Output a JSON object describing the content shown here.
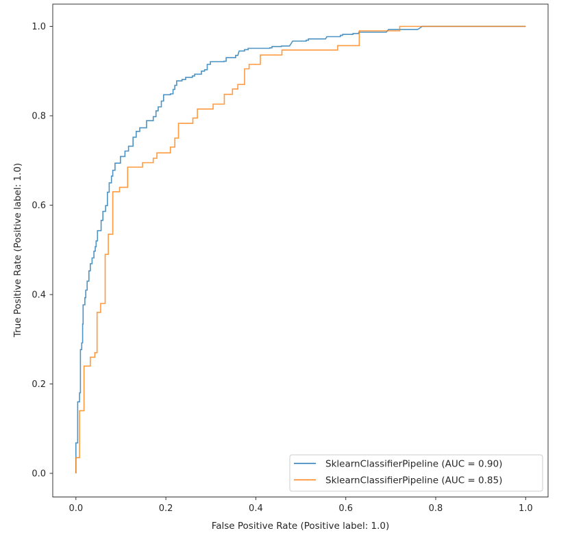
{
  "chart_data": {
    "type": "line",
    "title": "",
    "xlabel": "False Positive Rate (Positive label: 1.0)",
    "ylabel": "True Positive Rate (Positive label: 1.0)",
    "xlim": [
      -0.05,
      1.05
    ],
    "ylim": [
      -0.05,
      1.05
    ],
    "xticks": [
      "0.0",
      "0.2",
      "0.4",
      "0.6",
      "0.8",
      "1.0"
    ],
    "yticks": [
      "0.0",
      "0.2",
      "0.4",
      "0.6",
      "0.8",
      "1.0"
    ],
    "grid": false,
    "legend_placement": "lower-right",
    "series": [
      {
        "name": "SklearnClassifierPipeline (AUC = 0.90)",
        "color": "#1f77b4",
        "points": [
          [
            0,
            0
          ],
          [
            0,
            0.068
          ],
          [
            0.004,
            0.068
          ],
          [
            0.004,
            0.16
          ],
          [
            0.008,
            0.16
          ],
          [
            0.008,
            0.18
          ],
          [
            0.01,
            0.18
          ],
          [
            0.01,
            0.277
          ],
          [
            0.013,
            0.277
          ],
          [
            0.013,
            0.292
          ],
          [
            0.015,
            0.292
          ],
          [
            0.015,
            0.334
          ],
          [
            0.016,
            0.334
          ],
          [
            0.016,
            0.377
          ],
          [
            0.02,
            0.377
          ],
          [
            0.02,
            0.393
          ],
          [
            0.022,
            0.393
          ],
          [
            0.022,
            0.41
          ],
          [
            0.025,
            0.41
          ],
          [
            0.025,
            0.43
          ],
          [
            0.029,
            0.43
          ],
          [
            0.029,
            0.453
          ],
          [
            0.032,
            0.453
          ],
          [
            0.032,
            0.469
          ],
          [
            0.036,
            0.469
          ],
          [
            0.036,
            0.482
          ],
          [
            0.04,
            0.482
          ],
          [
            0.04,
            0.497
          ],
          [
            0.043,
            0.497
          ],
          [
            0.043,
            0.507
          ],
          [
            0.045,
            0.507
          ],
          [
            0.045,
            0.52
          ],
          [
            0.048,
            0.52
          ],
          [
            0.048,
            0.543
          ],
          [
            0.056,
            0.543
          ],
          [
            0.056,
            0.566
          ],
          [
            0.06,
            0.566
          ],
          [
            0.06,
            0.586
          ],
          [
            0.066,
            0.586
          ],
          [
            0.066,
            0.599
          ],
          [
            0.07,
            0.599
          ],
          [
            0.07,
            0.629
          ],
          [
            0.074,
            0.629
          ],
          [
            0.074,
            0.65
          ],
          [
            0.079,
            0.65
          ],
          [
            0.079,
            0.665
          ],
          [
            0.082,
            0.665
          ],
          [
            0.082,
            0.678
          ],
          [
            0.087,
            0.678
          ],
          [
            0.087,
            0.694
          ],
          [
            0.099,
            0.694
          ],
          [
            0.099,
            0.709
          ],
          [
            0.109,
            0.709
          ],
          [
            0.109,
            0.721
          ],
          [
            0.117,
            0.721
          ],
          [
            0.117,
            0.732
          ],
          [
            0.127,
            0.732
          ],
          [
            0.127,
            0.752
          ],
          [
            0.134,
            0.752
          ],
          [
            0.134,
            0.765
          ],
          [
            0.142,
            0.765
          ],
          [
            0.142,
            0.773
          ],
          [
            0.157,
            0.773
          ],
          [
            0.157,
            0.789
          ],
          [
            0.172,
            0.789
          ],
          [
            0.172,
            0.798
          ],
          [
            0.178,
            0.798
          ],
          [
            0.178,
            0.811
          ],
          [
            0.183,
            0.811
          ],
          [
            0.183,
            0.82
          ],
          [
            0.19,
            0.82
          ],
          [
            0.19,
            0.833
          ],
          [
            0.195,
            0.833
          ],
          [
            0.195,
            0.847
          ],
          [
            0.21,
            0.847
          ],
          [
            0.21,
            0.849
          ],
          [
            0.216,
            0.849
          ],
          [
            0.216,
            0.859
          ],
          [
            0.22,
            0.859
          ],
          [
            0.22,
            0.868
          ],
          [
            0.224,
            0.868
          ],
          [
            0.224,
            0.878
          ],
          [
            0.236,
            0.878
          ],
          [
            0.236,
            0.881
          ],
          [
            0.244,
            0.881
          ],
          [
            0.244,
            0.886
          ],
          [
            0.259,
            0.886
          ],
          [
            0.259,
            0.889
          ],
          [
            0.264,
            0.889
          ],
          [
            0.264,
            0.893
          ],
          [
            0.279,
            0.893
          ],
          [
            0.279,
            0.9
          ],
          [
            0.286,
            0.9
          ],
          [
            0.286,
            0.903
          ],
          [
            0.292,
            0.903
          ],
          [
            0.292,
            0.915
          ],
          [
            0.299,
            0.915
          ],
          [
            0.299,
            0.921
          ],
          [
            0.329,
            0.921
          ],
          [
            0.329,
            0.922
          ],
          [
            0.334,
            0.922
          ],
          [
            0.334,
            0.93
          ],
          [
            0.355,
            0.93
          ],
          [
            0.355,
            0.935
          ],
          [
            0.36,
            0.935
          ],
          [
            0.363,
            0.945
          ],
          [
            0.375,
            0.945
          ],
          [
            0.375,
            0.948
          ],
          [
            0.383,
            0.948
          ],
          [
            0.383,
            0.951
          ],
          [
            0.431,
            0.951
          ],
          [
            0.431,
            0.952
          ],
          [
            0.436,
            0.952
          ],
          [
            0.436,
            0.955
          ],
          [
            0.457,
            0.955
          ],
          [
            0.457,
            0.956
          ],
          [
            0.475,
            0.956
          ],
          [
            0.482,
            0.967
          ],
          [
            0.512,
            0.967
          ],
          [
            0.512,
            0.969
          ],
          [
            0.517,
            0.969
          ],
          [
            0.517,
            0.972
          ],
          [
            0.555,
            0.972
          ],
          [
            0.558,
            0.977
          ],
          [
            0.588,
            0.977
          ],
          [
            0.588,
            0.98
          ],
          [
            0.593,
            0.98
          ],
          [
            0.593,
            0.982
          ],
          [
            0.616,
            0.982
          ],
          [
            0.616,
            0.984
          ],
          [
            0.629,
            0.984
          ],
          [
            0.629,
            0.987
          ],
          [
            0.69,
            0.987
          ],
          [
            0.695,
            0.993
          ],
          [
            0.76,
            0.993
          ],
          [
            0.77,
            1.0
          ],
          [
            1,
            1
          ]
        ]
      },
      {
        "name": "SklearnClassifierPipeline (AUC = 0.85)",
        "color": "#ff7f0e",
        "points": [
          [
            0,
            0
          ],
          [
            0,
            0.035
          ],
          [
            0.008,
            0.035
          ],
          [
            0.008,
            0.14
          ],
          [
            0.018,
            0.14
          ],
          [
            0.018,
            0.24
          ],
          [
            0.032,
            0.24
          ],
          [
            0.032,
            0.26
          ],
          [
            0.042,
            0.26
          ],
          [
            0.042,
            0.27
          ],
          [
            0.047,
            0.27
          ],
          [
            0.047,
            0.36
          ],
          [
            0.055,
            0.36
          ],
          [
            0.055,
            0.38
          ],
          [
            0.065,
            0.38
          ],
          [
            0.065,
            0.49
          ],
          [
            0.072,
            0.49
          ],
          [
            0.072,
            0.535
          ],
          [
            0.082,
            0.535
          ],
          [
            0.082,
            0.63
          ],
          [
            0.097,
            0.63
          ],
          [
            0.097,
            0.64
          ],
          [
            0.115,
            0.64
          ],
          [
            0.115,
            0.685
          ],
          [
            0.148,
            0.685
          ],
          [
            0.148,
            0.695
          ],
          [
            0.172,
            0.695
          ],
          [
            0.172,
            0.705
          ],
          [
            0.18,
            0.705
          ],
          [
            0.18,
            0.717
          ],
          [
            0.21,
            0.717
          ],
          [
            0.21,
            0.73
          ],
          [
            0.22,
            0.73
          ],
          [
            0.22,
            0.75
          ],
          [
            0.228,
            0.75
          ],
          [
            0.228,
            0.783
          ],
          [
            0.26,
            0.783
          ],
          [
            0.26,
            0.795
          ],
          [
            0.27,
            0.795
          ],
          [
            0.27,
            0.815
          ],
          [
            0.305,
            0.815
          ],
          [
            0.305,
            0.826
          ],
          [
            0.33,
            0.826
          ],
          [
            0.33,
            0.848
          ],
          [
            0.348,
            0.848
          ],
          [
            0.348,
            0.86
          ],
          [
            0.36,
            0.86
          ],
          [
            0.36,
            0.87
          ],
          [
            0.375,
            0.87
          ],
          [
            0.375,
            0.905
          ],
          [
            0.385,
            0.905
          ],
          [
            0.385,
            0.915
          ],
          [
            0.41,
            0.915
          ],
          [
            0.41,
            0.936
          ],
          [
            0.458,
            0.936
          ],
          [
            0.458,
            0.947
          ],
          [
            0.582,
            0.947
          ],
          [
            0.582,
            0.957
          ],
          [
            0.63,
            0.957
          ],
          [
            0.63,
            0.99
          ],
          [
            0.72,
            0.99
          ],
          [
            0.72,
            1.0
          ],
          [
            1,
            1
          ]
        ]
      }
    ]
  }
}
